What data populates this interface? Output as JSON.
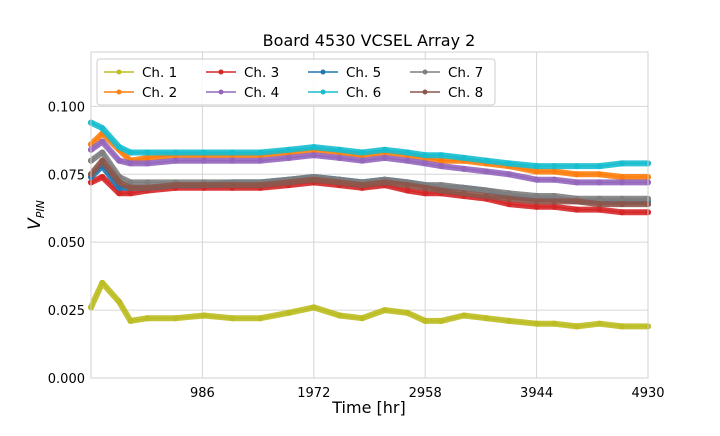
{
  "chart_data": {
    "type": "line",
    "title": "Board 4530 VCSEL Array 2",
    "xlabel": "Time [hr]",
    "ylabel": "V",
    "ylabel_sub": "PIN",
    "xlim": [
      0,
      4930
    ],
    "ylim": [
      0,
      0.12
    ],
    "xticks": [
      986,
      1972,
      2958,
      3944,
      4930
    ],
    "xtick_labels": [
      "986",
      "1972",
      "2958",
      "3944",
      "4930"
    ],
    "yticks": [
      0.0,
      0.025,
      0.05,
      0.075,
      0.1
    ],
    "ytick_labels": [
      "0.000",
      "0.025",
      "0.050",
      "0.075",
      "0.100"
    ],
    "grid": true,
    "legend_position": "top-left",
    "legend_columns": 4,
    "x": [
      0,
      100,
      250,
      350,
      500,
      750,
      1000,
      1250,
      1500,
      1750,
      1972,
      2200,
      2400,
      2600,
      2800,
      2958,
      3100,
      3300,
      3500,
      3700,
      3944,
      4100,
      4300,
      4500,
      4700,
      4930
    ],
    "series": [
      {
        "name": "Ch. 1",
        "color": "#bcbd22",
        "values": [
          0.026,
          0.035,
          0.028,
          0.021,
          0.022,
          0.022,
          0.023,
          0.022,
          0.022,
          0.024,
          0.026,
          0.023,
          0.022,
          0.025,
          0.024,
          0.021,
          0.021,
          0.023,
          0.022,
          0.021,
          0.02,
          0.02,
          0.019,
          0.02,
          0.019,
          0.019
        ]
      },
      {
        "name": "Ch. 2",
        "color": "#ff7f0e",
        "values": [
          0.086,
          0.09,
          0.084,
          0.08,
          0.081,
          0.082,
          0.082,
          0.082,
          0.082,
          0.083,
          0.084,
          0.083,
          0.082,
          0.083,
          0.082,
          0.081,
          0.08,
          0.08,
          0.079,
          0.078,
          0.076,
          0.076,
          0.075,
          0.075,
          0.074,
          0.074
        ]
      },
      {
        "name": "Ch. 3",
        "color": "#d62728",
        "values": [
          0.072,
          0.074,
          0.068,
          0.068,
          0.069,
          0.07,
          0.07,
          0.07,
          0.07,
          0.071,
          0.072,
          0.071,
          0.07,
          0.071,
          0.069,
          0.068,
          0.068,
          0.067,
          0.066,
          0.064,
          0.063,
          0.063,
          0.062,
          0.062,
          0.061,
          0.061
        ]
      },
      {
        "name": "Ch. 4",
        "color": "#9467bd",
        "values": [
          0.084,
          0.087,
          0.08,
          0.079,
          0.079,
          0.08,
          0.08,
          0.08,
          0.08,
          0.081,
          0.082,
          0.081,
          0.08,
          0.081,
          0.08,
          0.079,
          0.078,
          0.077,
          0.076,
          0.075,
          0.073,
          0.073,
          0.072,
          0.072,
          0.072,
          0.072
        ]
      },
      {
        "name": "Ch. 5",
        "color": "#1f77b4",
        "values": [
          0.074,
          0.078,
          0.07,
          0.07,
          0.07,
          0.071,
          0.071,
          0.072,
          0.072,
          0.073,
          0.074,
          0.073,
          0.072,
          0.073,
          0.072,
          0.071,
          0.07,
          0.07,
          0.069,
          0.067,
          0.066,
          0.066,
          0.065,
          0.065,
          0.065,
          0.065
        ]
      },
      {
        "name": "Ch. 6",
        "color": "#17becf",
        "values": [
          0.094,
          0.092,
          0.085,
          0.083,
          0.083,
          0.083,
          0.083,
          0.083,
          0.083,
          0.084,
          0.085,
          0.084,
          0.083,
          0.084,
          0.083,
          0.082,
          0.082,
          0.081,
          0.08,
          0.079,
          0.078,
          0.078,
          0.078,
          0.078,
          0.079,
          0.079
        ]
      },
      {
        "name": "Ch. 7",
        "color": "#7f7f7f",
        "values": [
          0.08,
          0.083,
          0.074,
          0.072,
          0.072,
          0.072,
          0.072,
          0.072,
          0.072,
          0.073,
          0.074,
          0.073,
          0.072,
          0.073,
          0.072,
          0.071,
          0.071,
          0.07,
          0.069,
          0.068,
          0.067,
          0.067,
          0.066,
          0.066,
          0.066,
          0.066
        ]
      },
      {
        "name": "Ch. 8",
        "color": "#8c564b",
        "values": [
          0.075,
          0.08,
          0.072,
          0.07,
          0.07,
          0.071,
          0.071,
          0.071,
          0.071,
          0.072,
          0.073,
          0.072,
          0.071,
          0.072,
          0.071,
          0.07,
          0.069,
          0.068,
          0.067,
          0.066,
          0.065,
          0.065,
          0.065,
          0.064,
          0.064,
          0.064
        ]
      }
    ]
  }
}
